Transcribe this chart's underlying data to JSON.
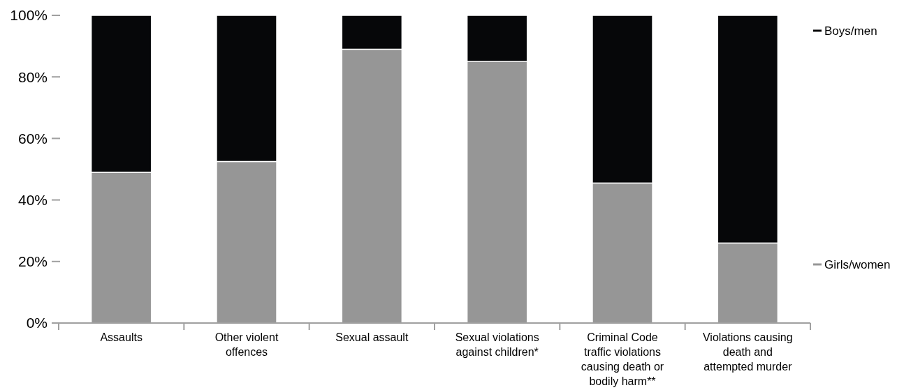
{
  "chart_data": {
    "type": "bar",
    "stacked": true,
    "legend": "right",
    "grid": false,
    "categories": [
      "Assaults",
      "Other violent offences",
      "Sexual assault",
      "Sexual violations against children*",
      "Criminal Code traffic violations causing death or bodily harm**",
      "Violations causing death and attempted murder"
    ],
    "series": [
      {
        "name": "Girls/women",
        "color": "#969696",
        "values": [
          49,
          52.5,
          89,
          85,
          45.5,
          26
        ]
      },
      {
        "name": "Boys/men",
        "color": "#060709",
        "values": [
          51,
          47.5,
          11,
          15,
          54.5,
          74
        ]
      }
    ],
    "ylim": [
      0,
      100
    ],
    "yticks": [
      {
        "value": 0,
        "label": "0%"
      },
      {
        "value": 20,
        "label": "20%"
      },
      {
        "value": 40,
        "label": "40%"
      },
      {
        "value": 60,
        "label": "60%"
      },
      {
        "value": 80,
        "label": "80%"
      },
      {
        "value": 100,
        "label": "100%"
      }
    ]
  }
}
